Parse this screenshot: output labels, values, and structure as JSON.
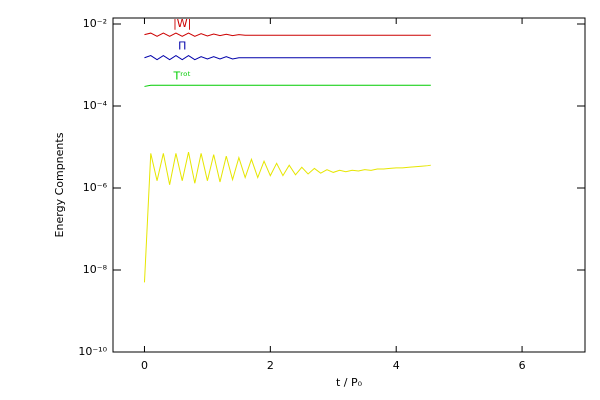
{
  "chart_data": {
    "type": "line",
    "xlabel": "t / P₀",
    "ylabel": "Energy Compnents",
    "yscale": "log",
    "xlim": [
      -0.5,
      7
    ],
    "xticks": [
      0,
      2,
      4,
      6
    ],
    "ylim": [
      1e-10,
      0.014
    ],
    "yticks": [
      {
        "value": 1e-10,
        "label": "10⁻¹⁰"
      },
      {
        "value": 1e-08,
        "label": "10⁻⁸"
      },
      {
        "value": 1e-06,
        "label": "10⁻⁶"
      },
      {
        "value": 0.0001,
        "label": "10⁻⁴"
      },
      {
        "value": 0.01,
        "label": "10⁻²"
      }
    ],
    "x": [
      0,
      0.1,
      0.2,
      0.3,
      0.4,
      0.5,
      0.6,
      0.7,
      0.8,
      0.9,
      1.0,
      1.1,
      1.2,
      1.3,
      1.4,
      1.5,
      1.6,
      1.7,
      1.8,
      1.9,
      2.0,
      2.1,
      2.2,
      2.3,
      2.4,
      2.5,
      2.6,
      2.7,
      2.8,
      2.9,
      3.0,
      3.1,
      3.2,
      3.3,
      3.4,
      3.5,
      3.6,
      3.7,
      3.8,
      3.9,
      4.0,
      4.1,
      4.2,
      4.3,
      4.4,
      4.5,
      4.55
    ],
    "series": [
      {
        "name": "|W|",
        "color": "#cc0000",
        "values": [
          0.0055,
          0.006,
          0.005,
          0.006,
          0.005,
          0.006,
          0.005,
          0.006,
          0.005,
          0.0058,
          0.0051,
          0.0057,
          0.0052,
          0.0056,
          0.0052,
          0.0055,
          0.0053,
          0.0053,
          0.0053,
          0.0053,
          0.0053,
          0.0053,
          0.0053,
          0.0053,
          0.0053,
          0.0053,
          0.0053,
          0.0053,
          0.0053,
          0.0053,
          0.0053,
          0.0053,
          0.0053,
          0.0053,
          0.0053,
          0.0053,
          0.0053,
          0.0053,
          0.0053,
          0.0053,
          0.0053,
          0.0053,
          0.0053,
          0.0053,
          0.0053,
          0.0053,
          0.0053
        ]
      },
      {
        "name": "Π",
        "color": "#0000aa",
        "values": [
          0.0015,
          0.0017,
          0.00135,
          0.0017,
          0.00135,
          0.0017,
          0.00135,
          0.0017,
          0.00135,
          0.0016,
          0.0014,
          0.0016,
          0.0014,
          0.0016,
          0.0014,
          0.0015,
          0.0015,
          0.0015,
          0.0015,
          0.0015,
          0.0015,
          0.0015,
          0.0015,
          0.0015,
          0.0015,
          0.0015,
          0.0015,
          0.0015,
          0.0015,
          0.0015,
          0.0015,
          0.0015,
          0.0015,
          0.0015,
          0.0015,
          0.0015,
          0.0015,
          0.0015,
          0.0015,
          0.0015,
          0.0015,
          0.0015,
          0.0015,
          0.0015,
          0.0015,
          0.0015,
          0.0015
        ]
      },
      {
        "name": "Tʳᵒᵗ",
        "color": "#00cc00",
        "values": [
          0.0003,
          0.00032,
          0.00032,
          0.00032,
          0.00032,
          0.00032,
          0.00032,
          0.00032,
          0.00032,
          0.00032,
          0.00032,
          0.00032,
          0.00032,
          0.00032,
          0.00032,
          0.00032,
          0.00032,
          0.00032,
          0.00032,
          0.00032,
          0.00032,
          0.00032,
          0.00032,
          0.00032,
          0.00032,
          0.00032,
          0.00032,
          0.00032,
          0.00032,
          0.00032,
          0.00032,
          0.00032,
          0.00032,
          0.00032,
          0.00032,
          0.00032,
          0.00032,
          0.00032,
          0.00032,
          0.00032,
          0.00032,
          0.00032,
          0.00032,
          0.00032,
          0.00032,
          0.00032,
          0.00032
        ]
      },
      {
        "color": "#e6e600",
        "values": [
          5e-09,
          7e-06,
          1.5e-06,
          7e-06,
          1.2e-06,
          7e-06,
          1.5e-06,
          7.5e-06,
          1.3e-06,
          7e-06,
          1.5e-06,
          6.5e-06,
          1.4e-06,
          6e-06,
          1.6e-06,
          5.5e-06,
          1.8e-06,
          5e-06,
          1.8e-06,
          4.5e-06,
          2e-06,
          4e-06,
          2e-06,
          3.6e-06,
          2.1e-06,
          3.2e-06,
          2.2e-06,
          3e-06,
          2.3e-06,
          2.8e-06,
          2.4e-06,
          2.7e-06,
          2.5e-06,
          2.7e-06,
          2.6e-06,
          2.8e-06,
          2.7e-06,
          2.9e-06,
          2.9e-06,
          3e-06,
          3.1e-06,
          3.1e-06,
          3.2e-06,
          3.3e-06,
          3.4e-06,
          3.5e-06,
          3.6e-06
        ]
      }
    ]
  }
}
